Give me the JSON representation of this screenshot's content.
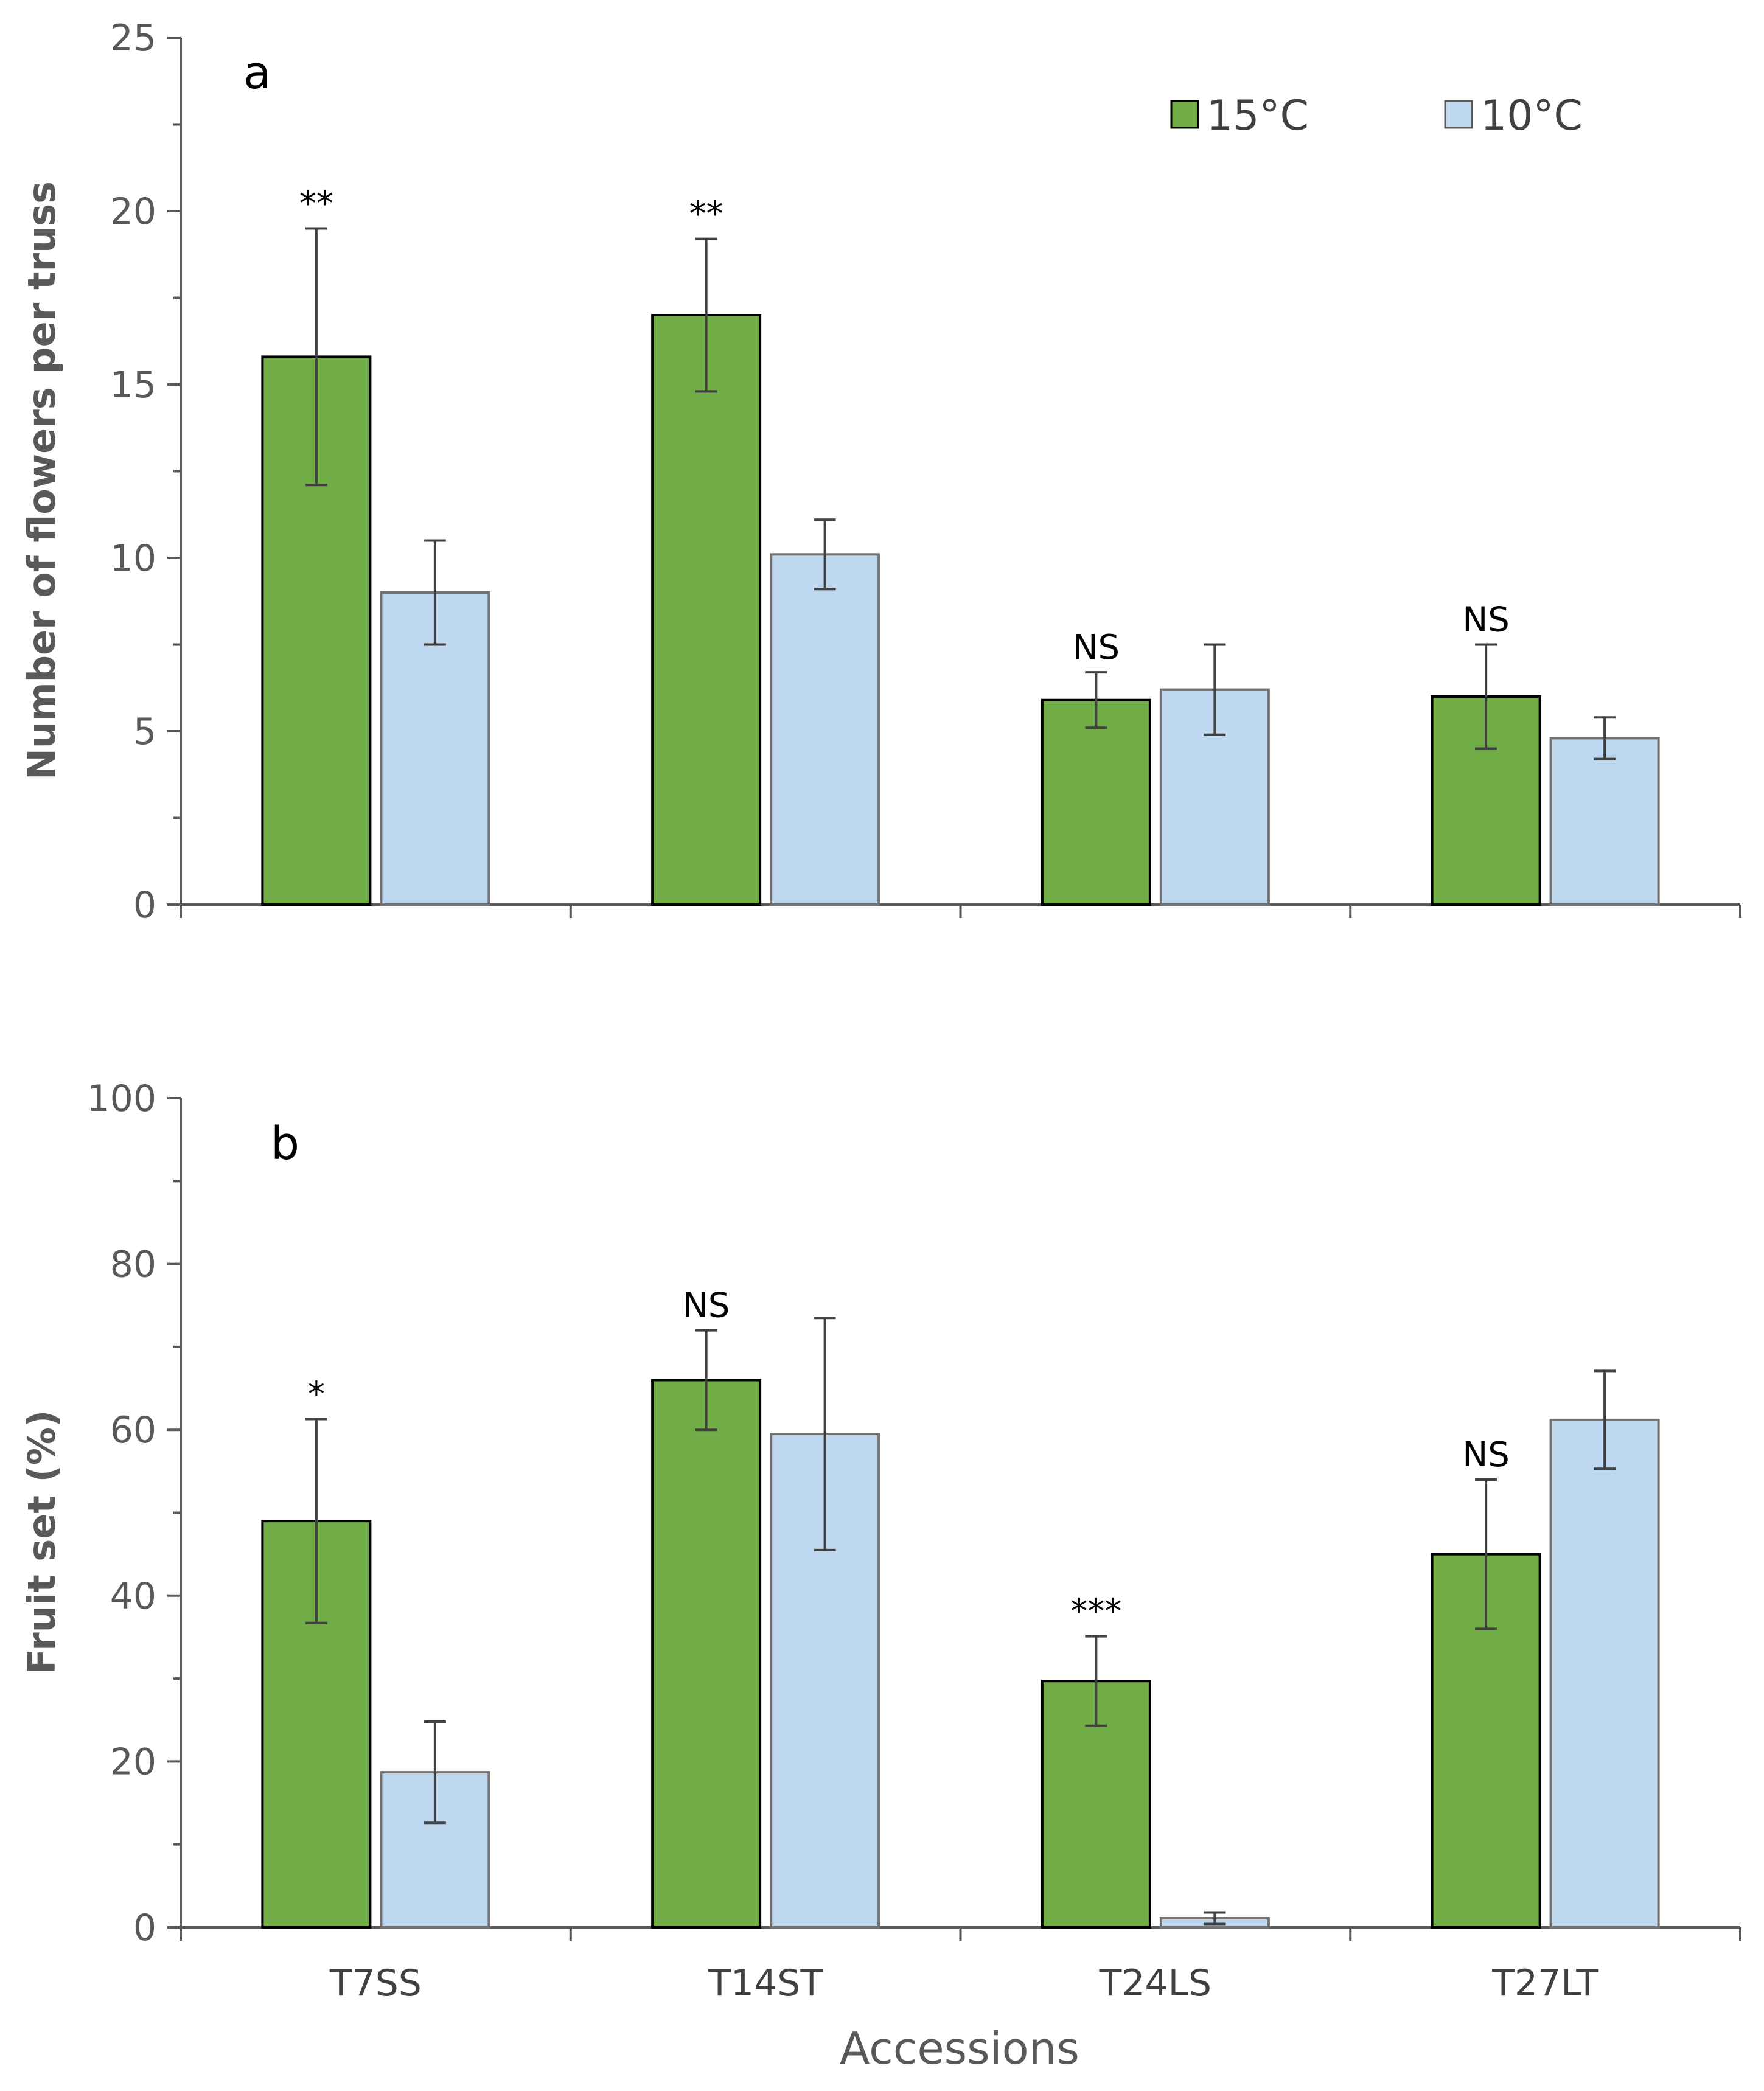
{
  "chart_data": [
    {
      "type": "bar",
      "panel": "a",
      "title": "",
      "xlabel": "",
      "ylabel": "Number of flowers per truss",
      "ylim": [
        0,
        25
      ],
      "yticks": [
        "0",
        "5",
        "10",
        "15",
        "20",
        "25"
      ],
      "categories": [
        "T7SS",
        "T14ST",
        "T24LS",
        "T27LT"
      ],
      "show_category_labels": false,
      "legend": {
        "placement": "top-right",
        "entries": [
          "15°C",
          "10°C"
        ]
      },
      "series": [
        {
          "name": "15°C",
          "color": "#70AD47",
          "values": [
            15.8,
            17.0,
            5.9,
            6.0
          ],
          "errors": [
            3.7,
            2.2,
            0.8,
            1.5
          ]
        },
        {
          "name": "10°C",
          "color": "#BDD7EE",
          "values": [
            9.0,
            10.1,
            6.2,
            4.8
          ],
          "errors": [
            1.5,
            1.0,
            1.3,
            0.6
          ]
        }
      ],
      "significance": [
        "**",
        "**",
        "NS",
        "NS"
      ]
    },
    {
      "type": "bar",
      "panel": "b",
      "title": "",
      "xlabel": "Accessions",
      "ylabel": "Fruit set (%)",
      "ylim": [
        0,
        100
      ],
      "yticks": [
        "0",
        "20",
        "40",
        "60",
        "80",
        "100"
      ],
      "categories": [
        "T7SS",
        "T14ST",
        "T24LS",
        "T27LT"
      ],
      "show_category_labels": true,
      "series": [
        {
          "name": "15°C",
          "color": "#70AD47",
          "values": [
            49.0,
            66.0,
            29.7,
            45.0
          ],
          "errors": [
            12.3,
            6.0,
            5.4,
            9.0
          ]
        },
        {
          "name": "10°C",
          "color": "#BDD7EE",
          "values": [
            18.7,
            59.5,
            1.1,
            61.2
          ],
          "errors": [
            6.1,
            14.0,
            0.7,
            5.9
          ]
        }
      ],
      "significance": [
        "*",
        "NS",
        "***",
        "NS"
      ]
    }
  ]
}
